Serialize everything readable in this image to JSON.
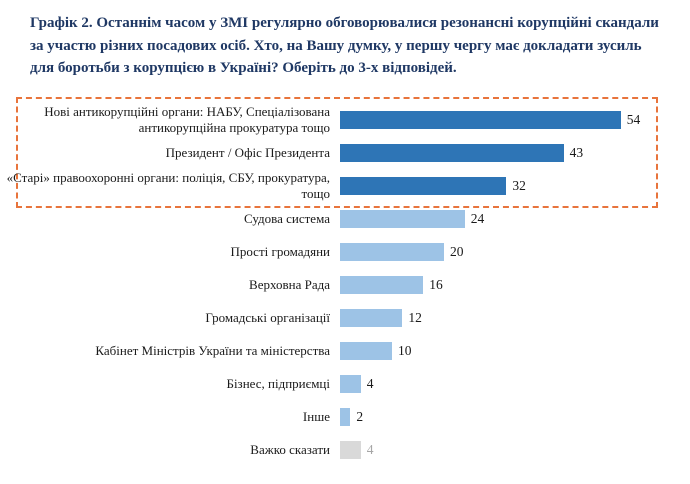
{
  "title": "Графік 2. Останнім часом у ЗМІ регулярно обговорювалися резонансні корупційні скандали за участю різних посадових осіб. Хто, на Вашу думку, у першу чергу має докладати зусиль для боротьби з корупцією в Україні? Оберіть до 3-х відповідей.",
  "chart_data": {
    "type": "bar",
    "orientation": "horizontal",
    "title": "Графік 2",
    "xlabel": "",
    "ylabel": "",
    "xlim": [
      0,
      60
    ],
    "grid": false,
    "legend": "none",
    "categories": [
      "Нові антикорупційні органи: НАБУ, Спеціалізована антикорупційна прокуратура тощо",
      "Президент / Офіс Президента",
      "«Старі» правоохоронні органи: поліція, СБУ, прокуратура, тощо",
      "Судова система",
      "Прості громадяни",
      "Верховна Рада",
      "Громадські організації",
      "Кабінет Міністрів України та міністерства",
      "Бізнес, підприємці",
      "Інше",
      "Важко сказати"
    ],
    "values": [
      54,
      43,
      32,
      24,
      20,
      16,
      12,
      10,
      4,
      2,
      4
    ],
    "highlighted_categories_count": 3,
    "bar_colors": [
      "#2E75B6",
      "#2E75B6",
      "#2E75B6",
      "#9DC3E6",
      "#9DC3E6",
      "#9DC3E6",
      "#9DC3E6",
      "#9DC3E6",
      "#9DC3E6",
      "#9DC3E6",
      "#D9D9D9"
    ],
    "value_label_colors": [
      "#1a1a1a",
      "#1a1a1a",
      "#1a1a1a",
      "#1a1a1a",
      "#1a1a1a",
      "#1a1a1a",
      "#1a1a1a",
      "#1a1a1a",
      "#1a1a1a",
      "#1a1a1a",
      "#A6A6A6"
    ],
    "highlight_border_color": "#E8743C",
    "title_color": "#1F3864"
  }
}
